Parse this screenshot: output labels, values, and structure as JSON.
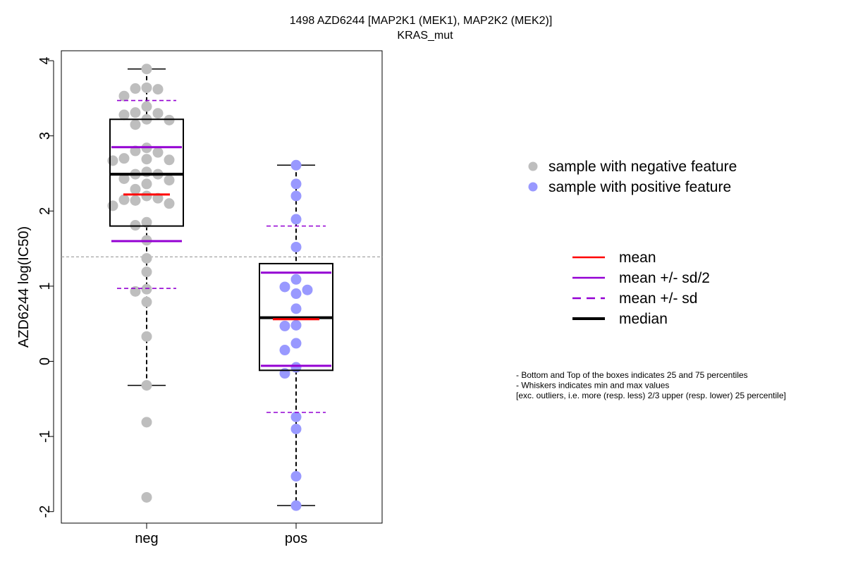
{
  "chart_data": {
    "type": "box",
    "title": "1498 AZD6244 [MAP2K1 (MEK1), MAP2K2 (MEK2)]",
    "subtitle": "KRAS_mut",
    "ylabel": "AZD6244 log(IC50)",
    "xlabel": "",
    "ylim": [
      -2.1,
      4.1
    ],
    "yticks": [
      -2,
      -1,
      0,
      1,
      2,
      3,
      4
    ],
    "categories": [
      "neg",
      "pos"
    ],
    "threshold_line": 1.39,
    "colors": {
      "neg_points": "#bebebe",
      "pos_points": "#9999ff",
      "mean": "#ff0000",
      "sd": "#9400d3",
      "median": "#000000",
      "threshold": "#999999"
    },
    "groups": [
      {
        "name": "neg",
        "points": [
          3.89,
          3.64,
          3.63,
          3.62,
          3.53,
          3.39,
          3.31,
          3.3,
          3.28,
          3.22,
          3.21,
          3.15,
          2.84,
          2.8,
          2.78,
          2.7,
          2.69,
          2.68,
          2.67,
          2.52,
          2.49,
          2.49,
          2.43,
          2.41,
          2.36,
          2.29,
          2.2,
          2.17,
          2.15,
          2.14,
          2.1,
          2.07,
          1.85,
          1.81,
          1.61,
          1.37,
          1.19,
          0.96,
          0.93,
          0.79,
          0.33,
          -0.32,
          -0.81,
          -1.81
        ],
        "q1": 1.8,
        "median": 2.49,
        "q3": 3.22,
        "whisker_low": -0.32,
        "whisker_high": 3.89,
        "mean": 2.22,
        "sd_half_low": 1.6,
        "sd_half_high": 2.85,
        "sd_low": 0.97,
        "sd_high": 3.47
      },
      {
        "name": "pos",
        "points": [
          2.61,
          2.36,
          2.2,
          1.89,
          1.52,
          1.09,
          0.99,
          0.95,
          0.9,
          0.7,
          0.48,
          0.47,
          0.24,
          0.15,
          -0.08,
          -0.16,
          -0.74,
          -0.9,
          -1.53,
          -1.92
        ],
        "q1": -0.12,
        "median": 0.58,
        "q3": 1.3,
        "whisker_low": -1.92,
        "whisker_high": 2.61,
        "mean": 0.56,
        "sd_half_low": -0.06,
        "sd_half_high": 1.18,
        "sd_low": -0.68,
        "sd_high": 1.8
      }
    ],
    "legend_points": [
      {
        "label": "sample with negative feature",
        "color": "#bebebe"
      },
      {
        "label": "sample with positive feature",
        "color": "#9999ff"
      }
    ],
    "legend_lines": [
      {
        "label": "mean",
        "color": "#ff0000",
        "style": "solid",
        "weight": "normal"
      },
      {
        "label": "mean +/- sd/2",
        "color": "#9400d3",
        "style": "solid",
        "weight": "normal"
      },
      {
        "label": "mean +/- sd",
        "color": "#9400d3",
        "style": "dashed",
        "weight": "normal"
      },
      {
        "label": "median",
        "color": "#000000",
        "style": "solid",
        "weight": "bold"
      }
    ],
    "notes": [
      "- Bottom and Top of the boxes indicates 25 and 75 percentiles",
      "- Whiskers indicates min and max values",
      "[exc. outliers, i.e. more (resp. less) 2/3 upper (resp. lower) 25 percentile]"
    ]
  }
}
